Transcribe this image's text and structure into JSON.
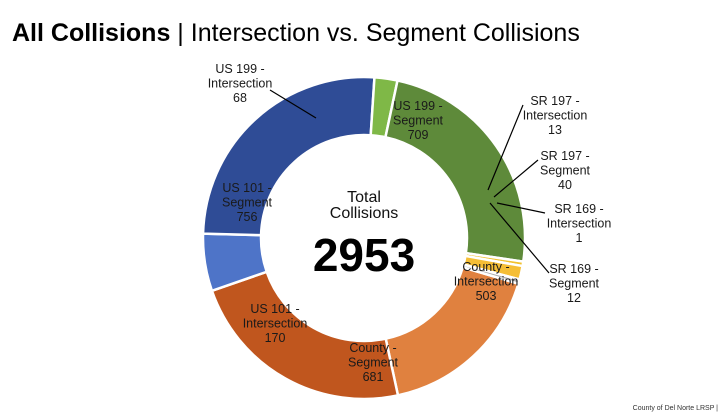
{
  "header": {
    "title_bold": "All Collisions",
    "title_sep": " | ",
    "title_rest": "Intersection vs. Segment Collisions"
  },
  "chart_data": {
    "type": "pie",
    "subtype": "donut",
    "center_label_line1": "Total",
    "center_label_line2": "Collisions",
    "center_value": "2953",
    "slices": [
      {
        "label": [
          "County -",
          "Intersection"
        ],
        "value": 503,
        "color": "#E0813F"
      },
      {
        "label": [
          "County -",
          "Segment"
        ],
        "value": 681,
        "color": "#C0561E"
      },
      {
        "label": [
          "US 101 -",
          "Intersection"
        ],
        "value": 170,
        "color": "#4E74C8"
      },
      {
        "label": [
          "US 101 -",
          "Segment"
        ],
        "value": 756,
        "color": "#2F4C96"
      },
      {
        "label": [
          "US 199 -",
          "Intersection"
        ],
        "value": 68,
        "color": "#7FB847"
      },
      {
        "label": [
          "US 199 -",
          "Segment"
        ],
        "value": 709,
        "color": "#5E8A3A"
      },
      {
        "label": [
          "SR 197 -",
          "Intersection"
        ],
        "value": 13,
        "color": "#F2C12E"
      },
      {
        "label": [
          "SR 197 -",
          "Segment"
        ],
        "value": 40,
        "color": "#F5BE35"
      },
      {
        "label": [
          "SR 169 -",
          "Intersection"
        ],
        "value": 1,
        "color": "#CFCFCF"
      },
      {
        "label": [
          "SR 169 -",
          "Segment"
        ],
        "value": 12,
        "color": "#A9A9A9"
      }
    ]
  },
  "footer": {
    "text": "County of Del Norte LRSP |"
  }
}
